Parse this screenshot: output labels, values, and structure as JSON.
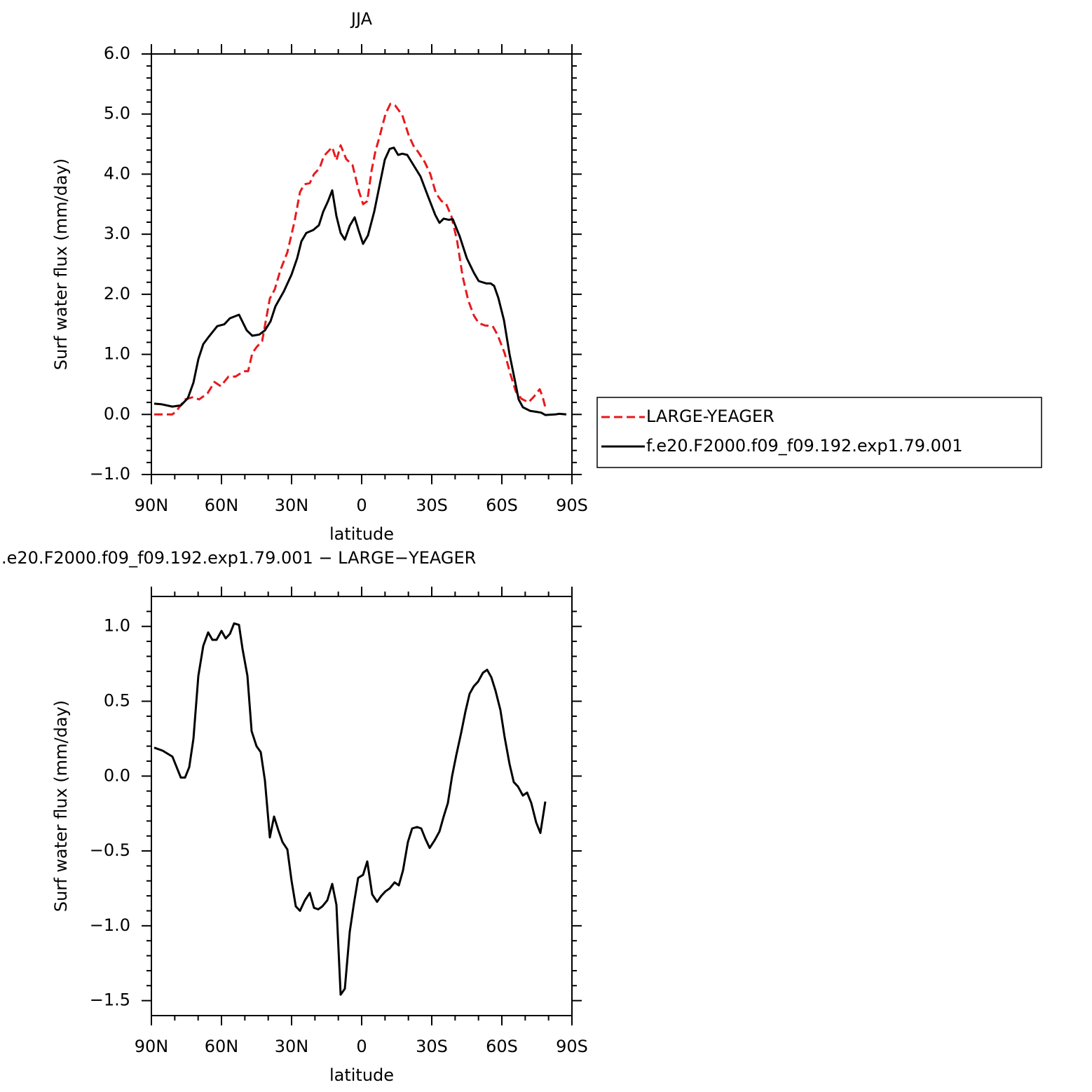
{
  "chart_data": [
    {
      "type": "line",
      "title": "JJA",
      "xlabel": "latitude",
      "ylabel": "Surf water flux (mm/day)",
      "xlim": [
        90,
        -90
      ],
      "xticks": [
        {
          "value": 90,
          "label": "90N"
        },
        {
          "value": 60,
          "label": "60N"
        },
        {
          "value": 30,
          "label": "30N"
        },
        0,
        {
          "value": -30,
          "label": "30S"
        },
        {
          "value": -60,
          "label": "60S"
        },
        {
          "value": -90,
          "label": "90S"
        }
      ],
      "xminorticks": [
        80,
        70,
        50,
        40,
        20,
        10,
        -10,
        -20,
        -40,
        -50,
        -70,
        -80
      ],
      "ylim": [
        -1,
        6
      ],
      "yticks": [
        {
          "value": -1,
          "label": "−1.0"
        },
        {
          "value": 0,
          "label": "0.0"
        },
        {
          "value": 1,
          "label": "1.0"
        },
        {
          "value": 2,
          "label": "2.0"
        },
        {
          "value": 3,
          "label": "3.0"
        },
        {
          "value": 4,
          "label": "4.0"
        },
        {
          "value": 5,
          "label": "5.0"
        },
        {
          "value": 6,
          "label": "6.0"
        }
      ],
      "yminorticks": [
        -0.8,
        -0.6,
        -0.4,
        -0.2,
        0.2,
        0.4,
        0.6,
        0.8,
        1.2,
        1.4,
        1.6,
        1.8,
        2.2,
        2.4,
        2.6,
        2.8,
        3.2,
        3.4,
        3.6,
        3.8,
        4.2,
        4.4,
        4.6,
        4.8,
        5.2,
        5.4,
        5.6,
        5.8
      ],
      "legend": "right",
      "series": [
        {
          "name": "LARGE-YEAGER",
          "color": "#e8191c",
          "dashed": true,
          "x": [
            88.8,
            81,
            79.2,
            75.6,
            72,
            69.6,
            66,
            63,
            60.3,
            57,
            54,
            50.4,
            48.6,
            46.8,
            45,
            42.6,
            39.3,
            37.2,
            34.8,
            31.8,
            28.8,
            26.4,
            24.6,
            22.2,
            20.4,
            18,
            16.2,
            12.6,
            10.8,
            9,
            6.6,
            3.9,
            1.2,
            -0.6,
            -2.4,
            -4.2,
            -6,
            -7.5,
            -10.2,
            -12.3,
            -14.4,
            -17.4,
            -20.1,
            -22.2,
            -24,
            -27,
            -29.4,
            -31.8,
            -34.2,
            -36,
            -38.4,
            -40.8,
            -43.2,
            -45.6,
            -48,
            -50.1,
            -52.8,
            -56.1,
            -58.2,
            -61.2,
            -63.6,
            -66,
            -68.4,
            -71.4,
            -73.8,
            -76.2,
            -77.4,
            -78.6
          ],
          "values": [
            0.0,
            0.0,
            0.06,
            0.25,
            0.29,
            0.25,
            0.35,
            0.54,
            0.47,
            0.63,
            0.63,
            0.72,
            0.72,
            1.02,
            1.12,
            1.22,
            1.93,
            2.08,
            2.4,
            2.7,
            3.2,
            3.7,
            3.83,
            3.85,
            4.0,
            4.1,
            4.3,
            4.45,
            4.23,
            4.48,
            4.25,
            4.15,
            3.72,
            3.5,
            3.55,
            4.05,
            4.4,
            4.6,
            5.0,
            5.17,
            5.14,
            4.98,
            4.65,
            4.47,
            4.38,
            4.2,
            4.0,
            3.68,
            3.55,
            3.52,
            3.3,
            2.9,
            2.3,
            1.9,
            1.65,
            1.52,
            1.48,
            1.47,
            1.32,
            1.02,
            0.68,
            0.38,
            0.26,
            0.2,
            0.3,
            0.42,
            0.3,
            0.12
          ]
        },
        {
          "name": "f.e20.F2000.f09_f09.192.exp1.79.001",
          "color": "#000000",
          "dashed": false,
          "x": [
            88.8,
            85.8,
            81,
            77.4,
            74.4,
            72,
            69.9,
            67.8,
            65.7,
            61.8,
            58.8,
            56.4,
            52.5,
            49.2,
            46.8,
            43.8,
            41.4,
            39,
            36.9,
            33.3,
            30,
            27.6,
            25.8,
            23.7,
            20.7,
            18.3,
            16.5,
            14.4,
            12.6,
            10.8,
            9,
            7.2,
            5.1,
            3,
            1.2,
            -0.6,
            -2.7,
            -5.4,
            -9.9,
            -12,
            -13.8,
            -15.6,
            -17.4,
            -19.5,
            -22.2,
            -25.2,
            -28.2,
            -31.5,
            -33.3,
            -35.1,
            -37.2,
            -39,
            -42,
            -45,
            -48,
            -50.1,
            -53.4,
            -55.2,
            -56.7,
            -58.5,
            -60.9,
            -63.3,
            -65.4,
            -67.2,
            -69,
            -72,
            -75.3,
            -76.8,
            -78.6,
            -82.8,
            -84.6,
            -87.6
          ],
          "values": [
            0.18,
            0.17,
            0.13,
            0.15,
            0.27,
            0.53,
            0.92,
            1.17,
            1.28,
            1.47,
            1.5,
            1.6,
            1.66,
            1.4,
            1.31,
            1.33,
            1.4,
            1.55,
            1.8,
            2.05,
            2.33,
            2.6,
            2.88,
            3.02,
            3.07,
            3.15,
            3.37,
            3.55,
            3.73,
            3.3,
            3.02,
            2.91,
            3.14,
            3.28,
            3.05,
            2.84,
            2.98,
            3.38,
            4.24,
            4.42,
            4.44,
            4.32,
            4.34,
            4.32,
            4.15,
            3.96,
            3.65,
            3.32,
            3.19,
            3.26,
            3.24,
            3.25,
            2.96,
            2.6,
            2.36,
            2.22,
            2.18,
            2.18,
            2.14,
            1.94,
            1.57,
            1.0,
            0.6,
            0.25,
            0.12,
            0.06,
            0.04,
            0.03,
            -0.01,
            0.0,
            0.01,
            0.0
          ]
        }
      ]
    },
    {
      "type": "line",
      "title": ".e20.F2000.f09_f09.192.exp1.79.001 − LARGE−YEAGER",
      "xlabel": "latitude",
      "ylabel": "Surf water flux (mm/day)",
      "xlim": [
        90,
        -90
      ],
      "xticks": [
        {
          "value": 90,
          "label": "90N"
        },
        {
          "value": 60,
          "label": "60N"
        },
        {
          "value": 30,
          "label": "30N"
        },
        0,
        {
          "value": -30,
          "label": "30S"
        },
        {
          "value": -60,
          "label": "60S"
        },
        {
          "value": -90,
          "label": "90S"
        }
      ],
      "xminorticks": [
        80,
        70,
        50,
        40,
        20,
        10,
        -10,
        -20,
        -40,
        -50,
        -70,
        -80
      ],
      "ylim": [
        -1.6,
        1.2
      ],
      "yticks": [
        {
          "value": -1.5,
          "label": "−1.5"
        },
        {
          "value": -1,
          "label": "−1.0"
        },
        {
          "value": -0.5,
          "label": "−0.5"
        },
        {
          "value": 0,
          "label": "0.0"
        },
        0.5,
        {
          "value": 1,
          "label": "1.0"
        }
      ],
      "yminorticks": [
        -1.4,
        -1.3,
        -1.2,
        -1.1,
        -0.9,
        -0.8,
        -0.7,
        -0.6,
        -0.4,
        -0.3,
        -0.2,
        -0.1,
        0.1,
        0.2,
        0.3,
        0.4,
        0.6,
        0.7,
        0.8,
        0.9,
        1.1
      ],
      "series": [
        {
          "color": "#000000",
          "dashed": false,
          "x": [
            88.8,
            85.2,
            81,
            77.4,
            75.6,
            73.8,
            72,
            69.9,
            67.8,
            65.7,
            63.9,
            62.1,
            60,
            58.2,
            56.4,
            54.6,
            52.5,
            51,
            48.9,
            47.1,
            45,
            43.2,
            41.4,
            39.3,
            37.5,
            35.7,
            33.9,
            31.8,
            30,
            28.2,
            26.4,
            24.3,
            22.2,
            20.4,
            18.6,
            16.8,
            14.7,
            12.6,
            10.8,
            9,
            7.2,
            5.1,
            3.3,
            1.5,
            -0.6,
            -2.4,
            -4.5,
            -6.6,
            -8.4,
            -10.2,
            -12,
            -14.1,
            -15.9,
            -17.7,
            -19.8,
            -21.6,
            -23.7,
            -25.5,
            -27.3,
            -29.1,
            -31.2,
            -33.3,
            -35.1,
            -36.9,
            -38.7,
            -40.5,
            -42.6,
            -44.4,
            -46.2,
            -48,
            -49.8,
            -51.9,
            -53.7,
            -55.5,
            -57.3,
            -59.4,
            -61.2,
            -63.3,
            -65.1,
            -66.9,
            -69,
            -70.8,
            -72.6,
            -74.7,
            -76.5,
            -78.6
          ],
          "values": [
            0.19,
            0.17,
            0.13,
            -0.01,
            -0.01,
            0.06,
            0.25,
            0.67,
            0.87,
            0.96,
            0.91,
            0.91,
            0.97,
            0.92,
            0.95,
            1.02,
            1.01,
            0.85,
            0.67,
            0.3,
            0.2,
            0.16,
            -0.03,
            -0.41,
            -0.27,
            -0.36,
            -0.44,
            -0.49,
            -0.7,
            -0.87,
            -0.9,
            -0.83,
            -0.78,
            -0.88,
            -0.89,
            -0.87,
            -0.83,
            -0.72,
            -0.86,
            -1.46,
            -1.42,
            -1.04,
            -0.85,
            -0.68,
            -0.66,
            -0.57,
            -0.79,
            -0.84,
            -0.8,
            -0.77,
            -0.75,
            -0.71,
            -0.73,
            -0.63,
            -0.44,
            -0.35,
            -0.34,
            -0.35,
            -0.42,
            -0.48,
            -0.43,
            -0.37,
            -0.27,
            -0.18,
            0.0,
            0.14,
            0.29,
            0.43,
            0.55,
            0.6,
            0.63,
            0.69,
            0.71,
            0.66,
            0.57,
            0.44,
            0.26,
            0.08,
            -0.04,
            -0.07,
            -0.13,
            -0.11,
            -0.18,
            -0.31,
            -0.38,
            -0.17
          ]
        }
      ]
    }
  ]
}
